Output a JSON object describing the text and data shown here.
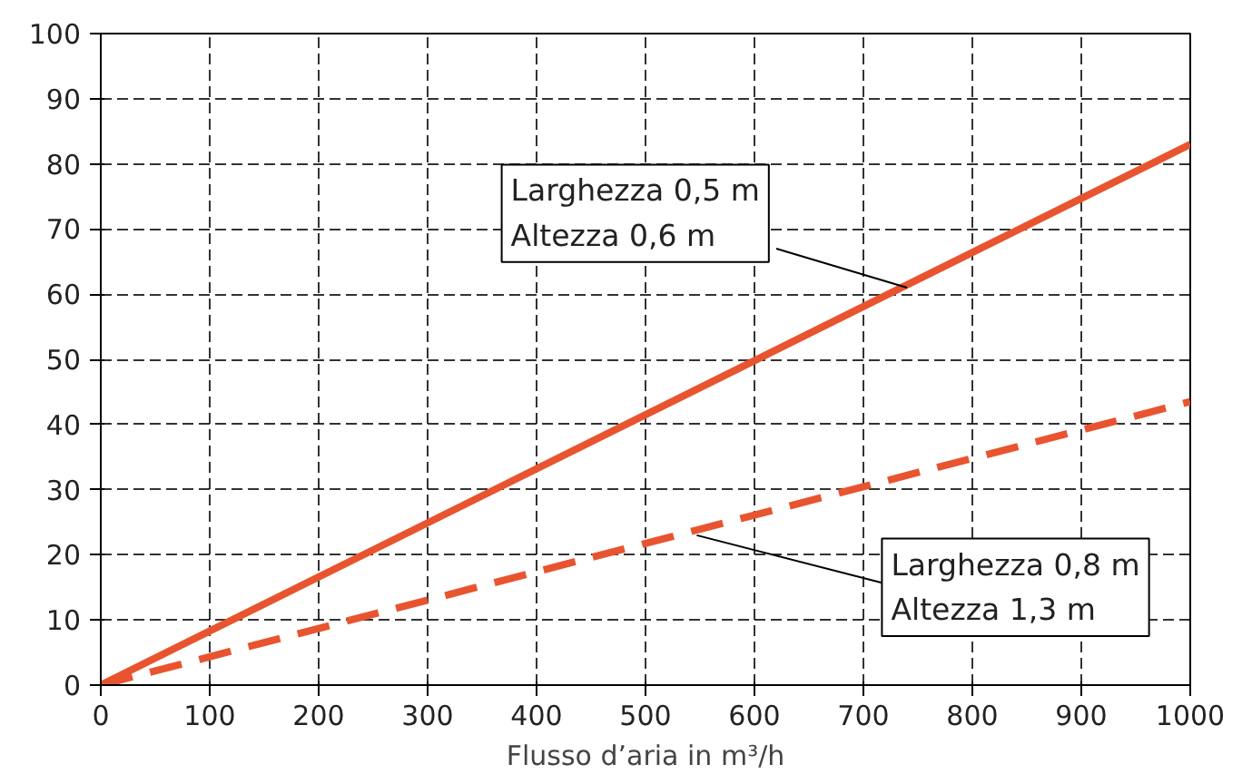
{
  "chart_data": {
    "type": "line",
    "xlabel": "Flusso d’aria in m³/h",
    "xlim": [
      0,
      1000
    ],
    "ylim": [
      0,
      100
    ],
    "xticks": [
      0,
      100,
      200,
      300,
      400,
      500,
      600,
      700,
      800,
      900,
      1000
    ],
    "yticks": [
      0,
      10,
      20,
      30,
      40,
      50,
      60,
      70,
      80,
      90,
      100
    ],
    "grid": true,
    "x": [
      0,
      1000
    ],
    "series": [
      {
        "color": "#e8542f",
        "values": [
          0,
          83
        ],
        "line_style": "solid"
      },
      {
        "color": "#e8542f",
        "values": [
          0,
          43.5
        ],
        "line_style": "dashed"
      }
    ],
    "annotations": [
      {
        "text": "Larghezza 0,5 m\nAltezza 0,6 m",
        "x": 740,
        "y": 61
      },
      {
        "text": "Larghezza 0,8 m\nAltezza 1,3 m",
        "x": 547,
        "y": 23
      }
    ]
  }
}
